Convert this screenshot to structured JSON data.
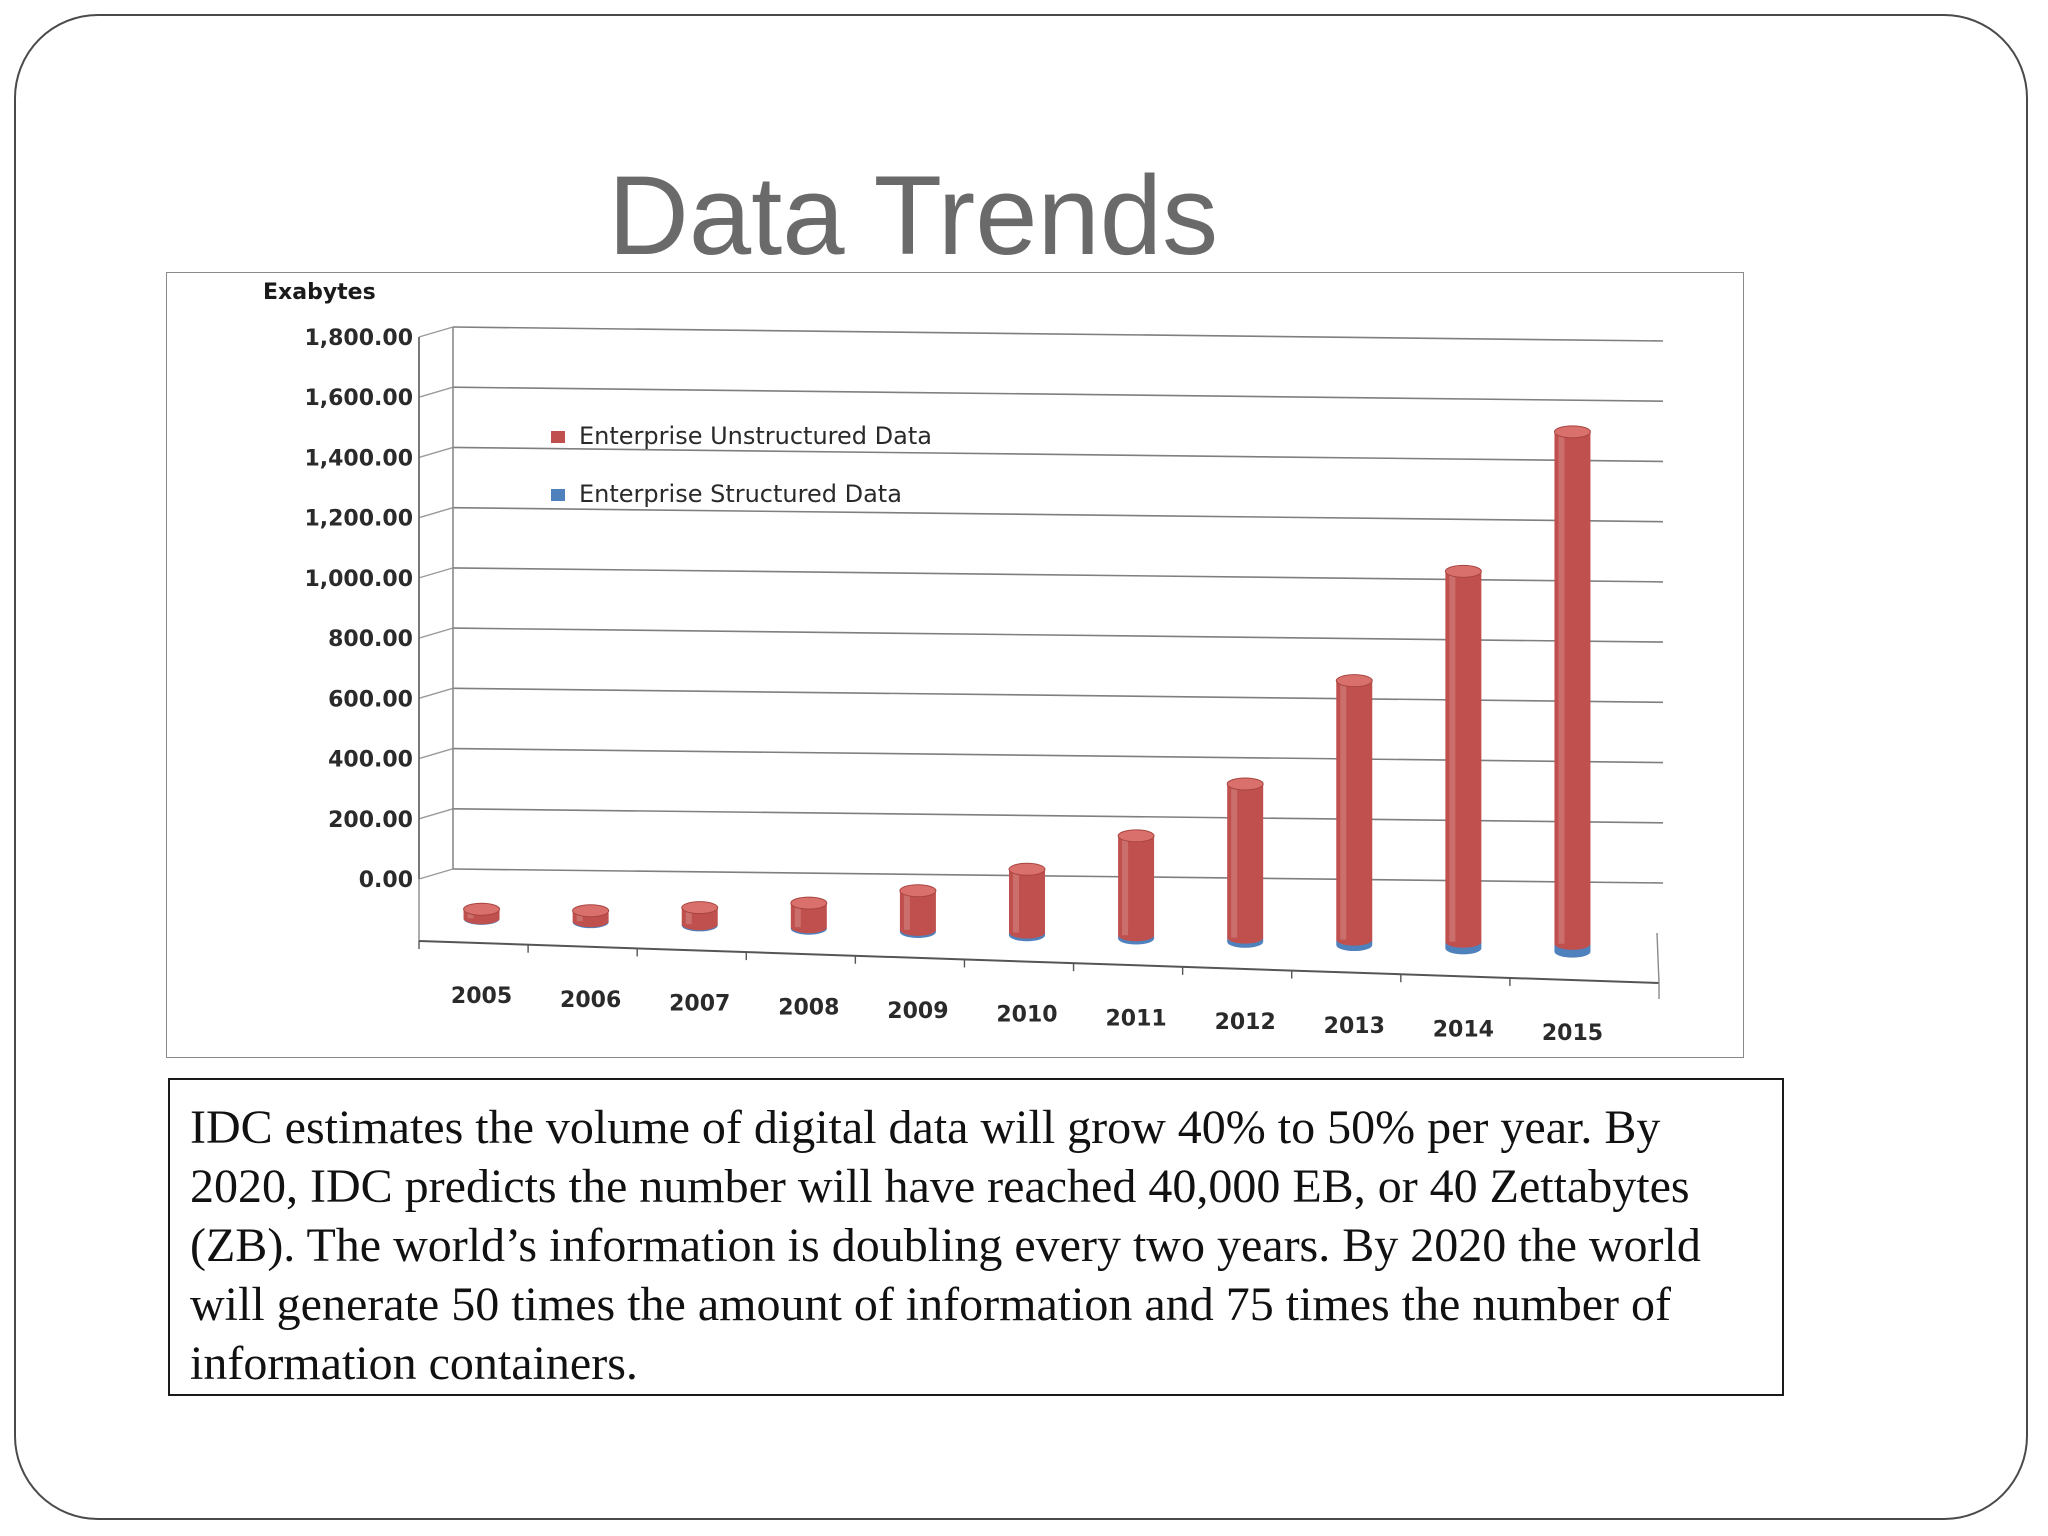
{
  "slide": {
    "title": "Data Trends",
    "caption": "IDC estimates the volume of digital data will grow 40% to 50% per year. By 2020, IDC predicts the number will have reached  40,000 EB, or 40 Zettabytes (ZB). The world’s information is doubling every two years. By 2020 the world will generate 50 times the amount of information and 75 times the number of information containers."
  },
  "chart_data": {
    "type": "bar",
    "style": "3d-cylinder-stacked",
    "ylabel": "Exabytes",
    "ylim": [
      0,
      1800
    ],
    "yticks": [
      "0.00",
      "200.00",
      "400.00",
      "600.00",
      "800.00",
      "1,000.00",
      "1,200.00",
      "1,400.00",
      "1,600.00",
      "1,800.00"
    ],
    "categories": [
      "2005",
      "2006",
      "2007",
      "2008",
      "2009",
      "2010",
      "2011",
      "2012",
      "2013",
      "2014",
      "2015"
    ],
    "series": [
      {
        "name": "Enterprise Structured Data",
        "color": "#4f81bd",
        "values": [
          2,
          3,
          4,
          5,
          7,
          9,
          11,
          14,
          18,
          22,
          26
        ]
      },
      {
        "name": "Enterprise Unstructured Data",
        "color": "#c0504d",
        "values": [
          30,
          35,
          55,
          80,
          130,
          210,
          330,
          510,
          860,
          1230,
          1700
        ]
      }
    ],
    "legend_position": "top-left",
    "grid": true
  }
}
